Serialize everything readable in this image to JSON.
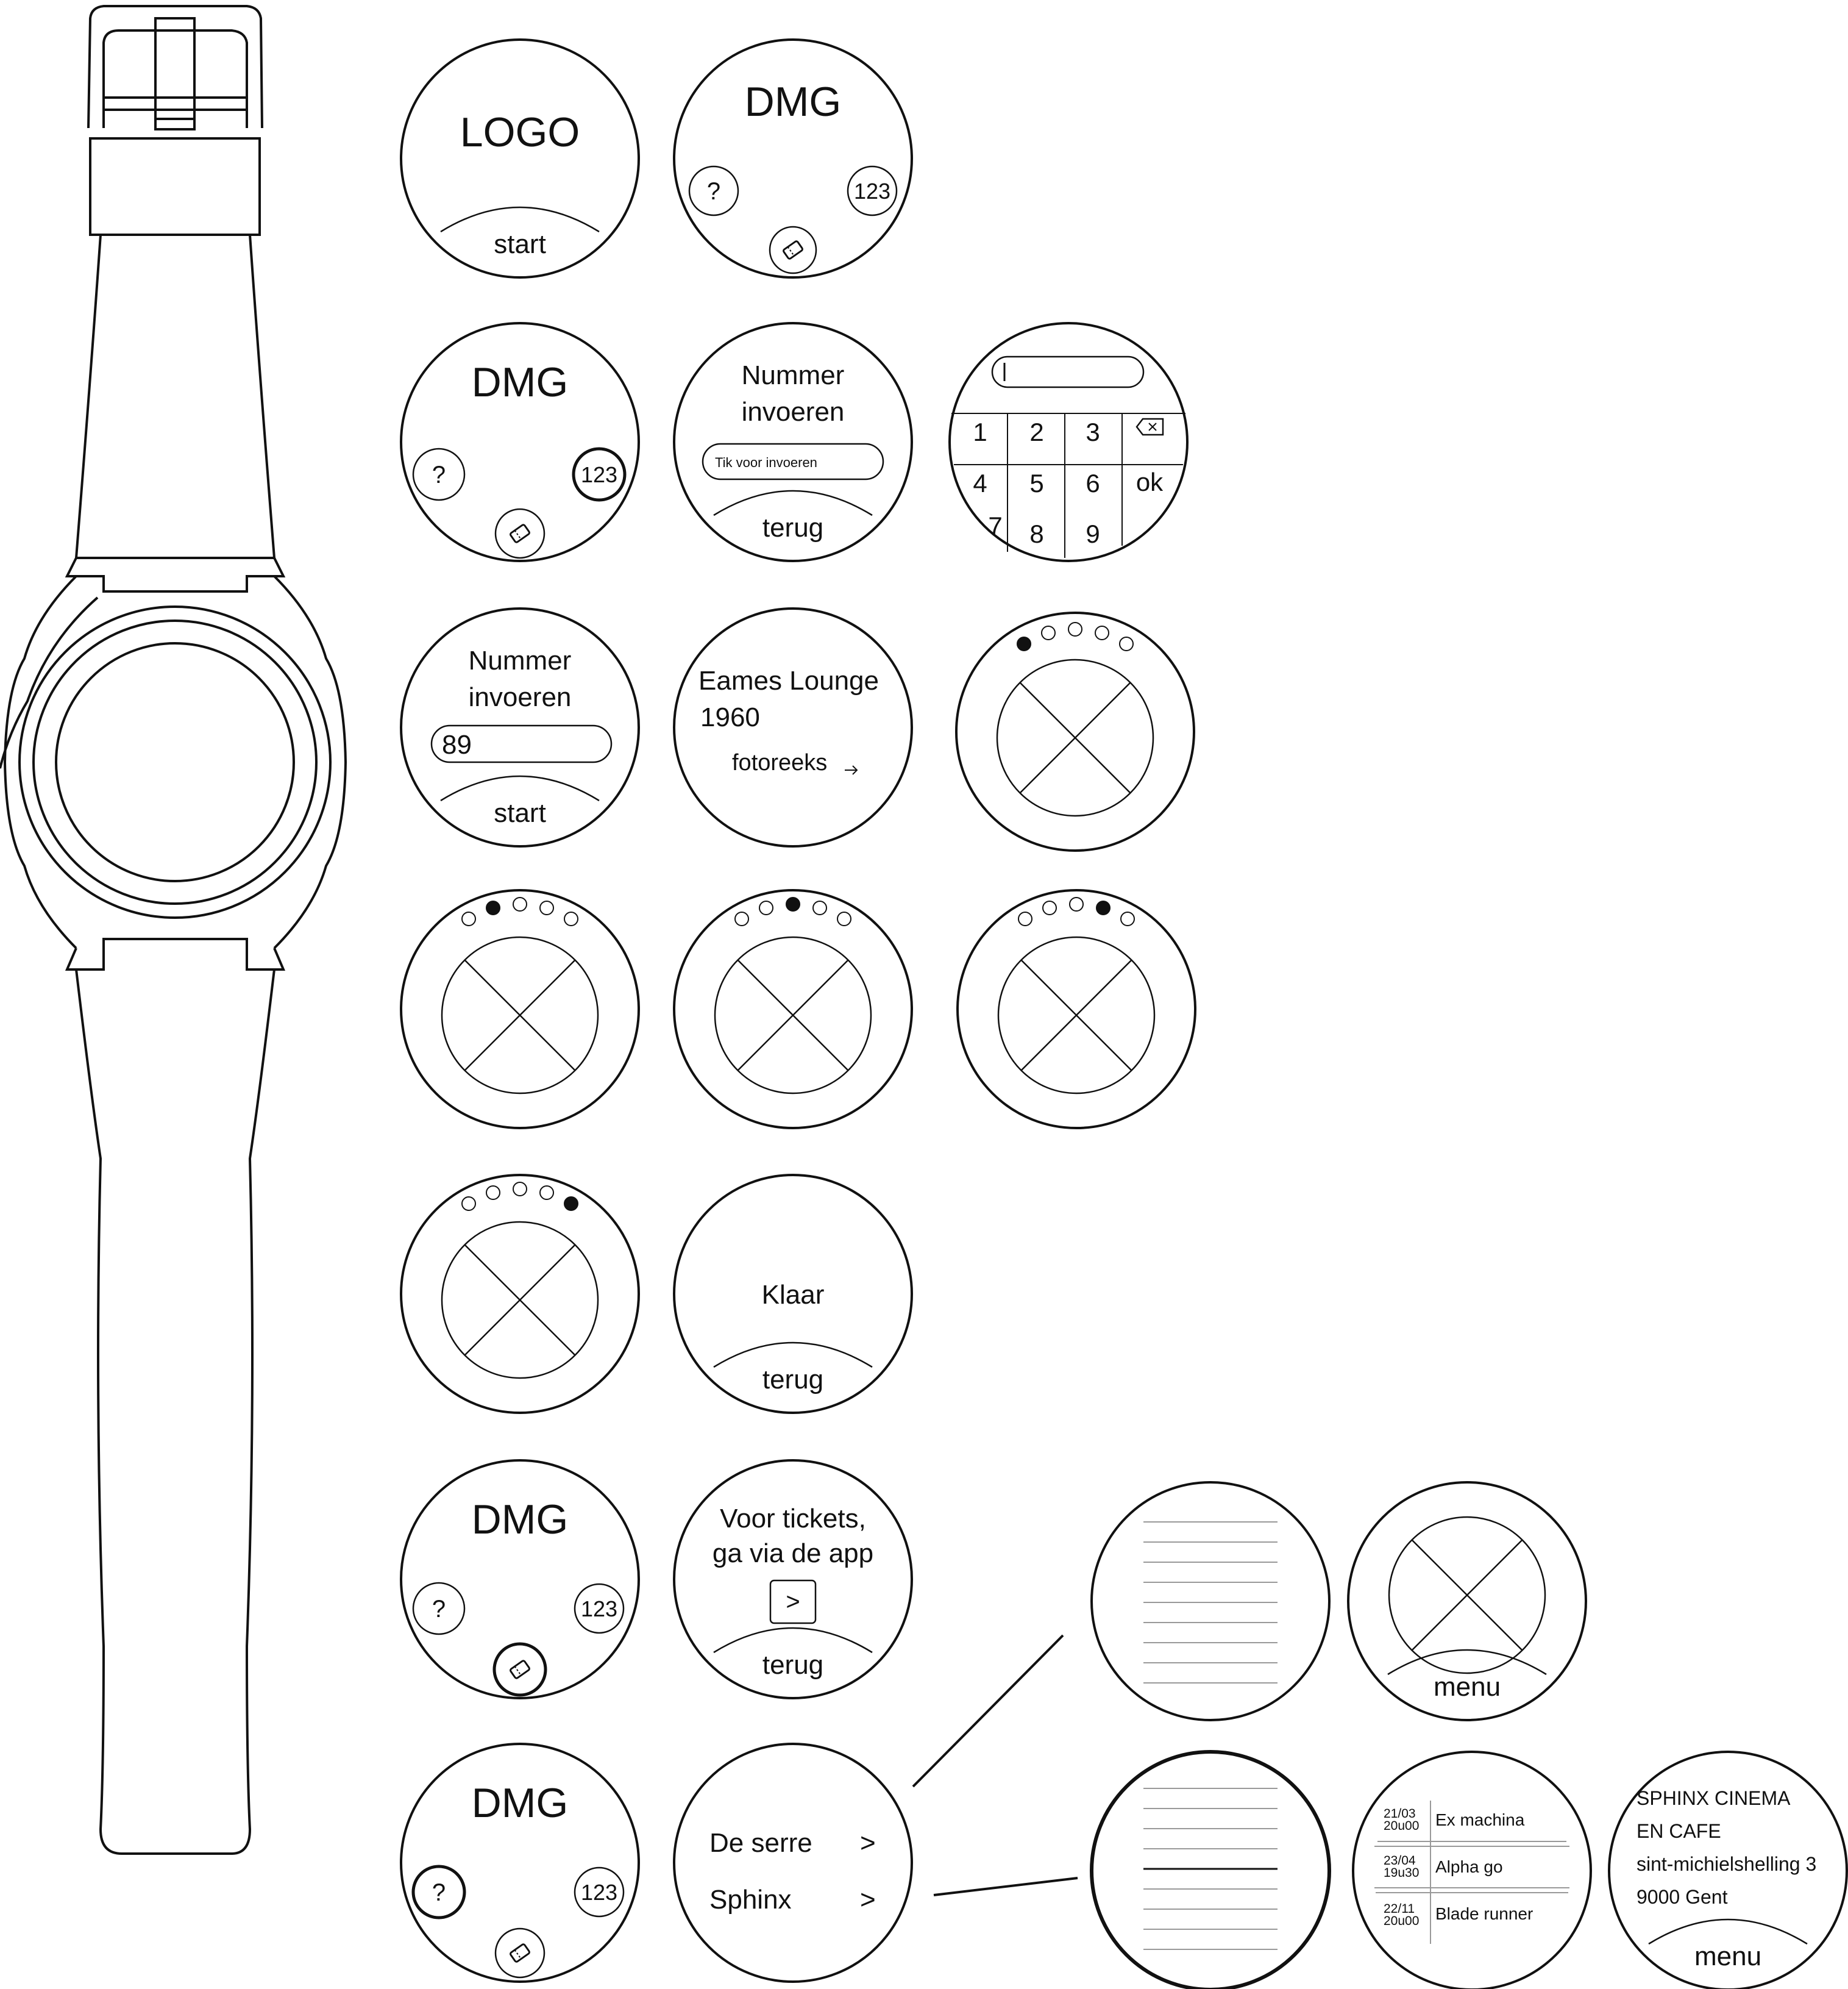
{
  "screens": {
    "splash": {
      "logo": "LOGO",
      "button": "start"
    },
    "home": {
      "title": "DMG",
      "help": "?",
      "number": "123"
    },
    "number_entry": {
      "title_line1": "Nummer",
      "title_line2": "invoeren",
      "placeholder": "Tik voor invoeren",
      "button": "terug"
    },
    "keypad": {
      "keys": [
        "1",
        "2",
        "3",
        "4",
        "5",
        "6",
        "7",
        "8",
        "9"
      ],
      "ok": "ok"
    },
    "number_filled": {
      "title_line1": "Nummer",
      "title_line2": "invoeren",
      "value": "89",
      "button": "start"
    },
    "artwork": {
      "title_line1": "Eames Lounge",
      "title_line2": "1960",
      "link": "fotoreeks"
    },
    "done": {
      "title": "Klaar",
      "button": "terug"
    },
    "tickets": {
      "line1": "Voor tickets,",
      "line2": "ga via de app",
      "arrow": ">",
      "button": "terug"
    },
    "venues": {
      "items": [
        {
          "label": "De serre",
          "chevron": ">"
        },
        {
          "label": "Sphinx",
          "chevron": ">"
        }
      ]
    },
    "photo_menu": {
      "button": "menu"
    },
    "schedule": {
      "rows": [
        {
          "date": "21/03",
          "time": "20u00",
          "title": "Ex machina"
        },
        {
          "date": "23/04",
          "time": "19u30",
          "title": "Alpha go"
        },
        {
          "date": "22/11",
          "time": "20u00",
          "title": "Blade runner"
        }
      ]
    },
    "venue_info": {
      "line1": "SPHINX CINEMA",
      "line2": "EN CAFE",
      "line3": "sint-michielshelling 3",
      "line4": "9000 Gent",
      "button": "menu"
    }
  },
  "carousel": {
    "dot_count": 5,
    "active_indices": [
      0,
      1,
      2,
      3,
      4
    ]
  }
}
